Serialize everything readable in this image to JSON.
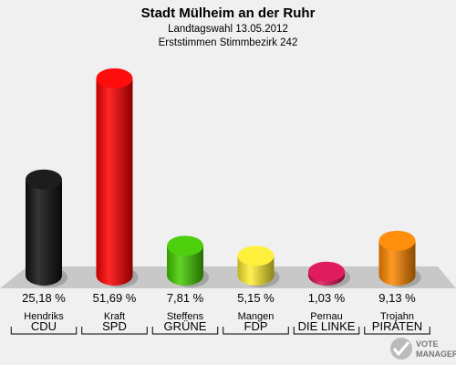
{
  "chart_data": {
    "type": "bar",
    "title": "Stadt Mülheim an der Ruhr",
    "subtitle_1": "Landtagswahl 13.05.2012",
    "subtitle_2": "Erststimmen Stimmbezirk 242",
    "categories": [
      "CDU",
      "SPD",
      "GRÜNE",
      "FDP",
      "DIE LINKE",
      "PIRATEN"
    ],
    "candidates": [
      "Hendriks",
      "Kraft",
      "Steffens",
      "Mangen",
      "Pernau",
      "Trojahn"
    ],
    "values": [
      25.18,
      51.69,
      7.81,
      5.15,
      1.03,
      9.13
    ],
    "labels": [
      "25,18 %",
      "51,69 %",
      "7,81 %",
      "5,15 %",
      "1,03 %",
      "9,13 %"
    ],
    "colors": [
      "#111111",
      "#ff0000",
      "#44cc00",
      "#ffee33",
      "#dd1155",
      "#ff8800"
    ],
    "ylim": [
      0,
      55
    ],
    "grid": false
  },
  "logo": {
    "line1": "VOTE",
    "line2": "MANAGER"
  }
}
